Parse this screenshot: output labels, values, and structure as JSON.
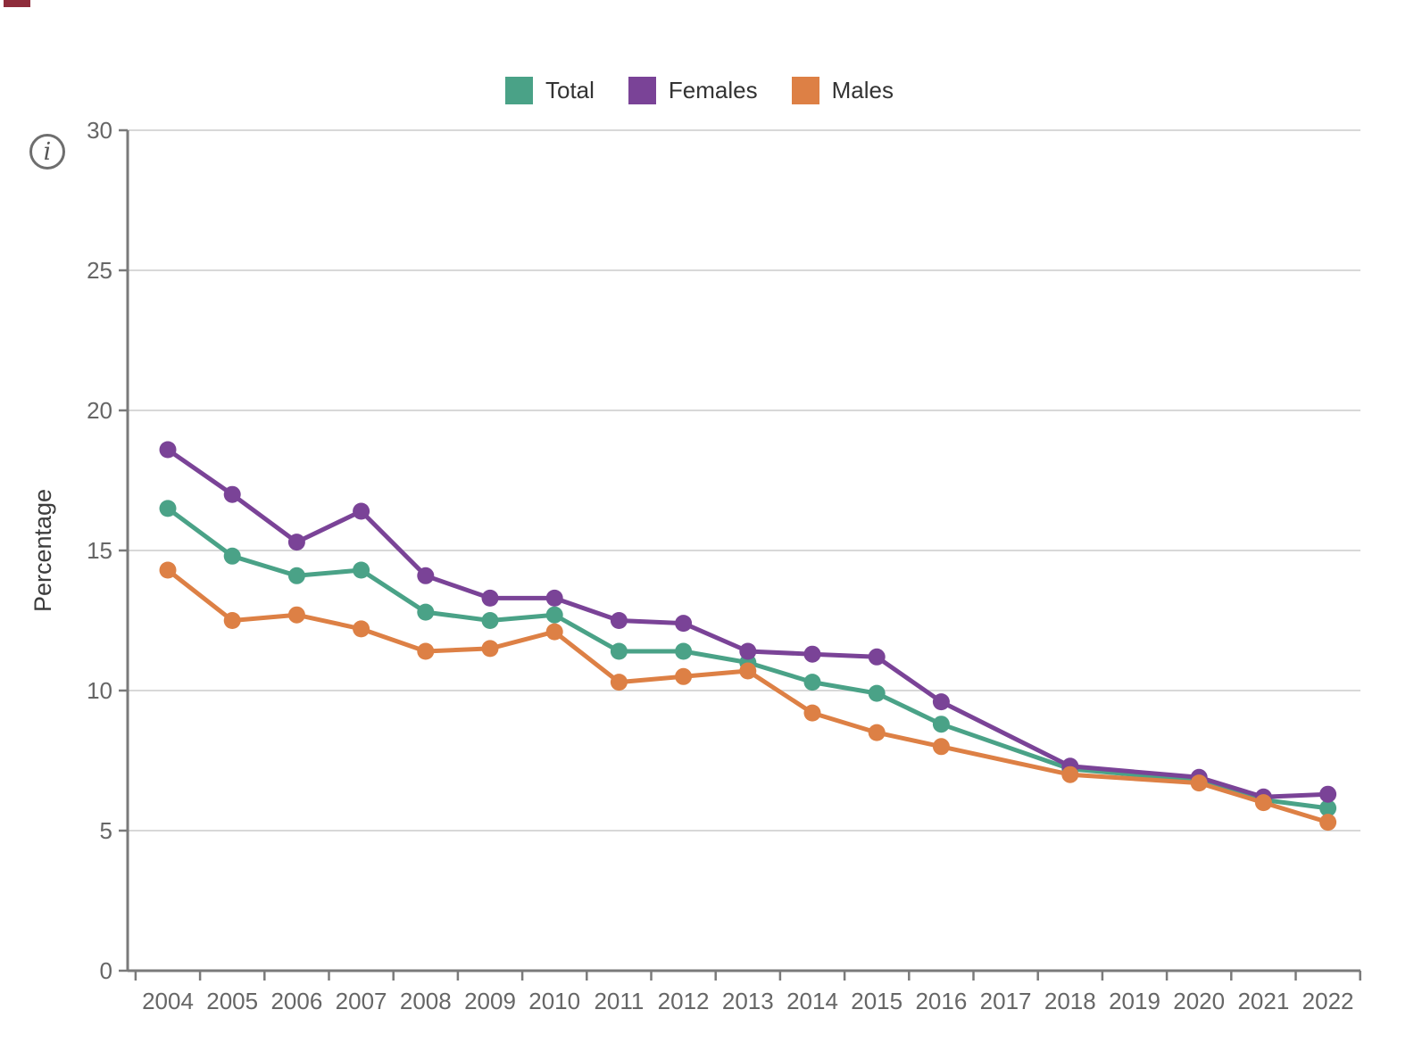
{
  "page": {
    "top_accent_color": "#8e2c3b",
    "background": "#ffffff"
  },
  "info_icon": {
    "glyph": "i"
  },
  "axis_style": {
    "grid_color": "#d8d8d8",
    "axis_color": "#7a7a7a",
    "tick_label_color": "#666666",
    "axis_title_color": "#3c3c3c"
  },
  "chart_data": {
    "type": "line",
    "title": "",
    "xlabel": "",
    "ylabel": "Percentage",
    "ylim": [
      0,
      30
    ],
    "yticks": [
      0,
      5,
      10,
      15,
      20,
      25,
      30
    ],
    "grid": true,
    "legend_position": "top",
    "markers": true,
    "missing_years_note": "2017 and 2019 have no data points; lines connect across them",
    "categories": [
      "2004",
      "2005",
      "2006",
      "2007",
      "2008",
      "2009",
      "2010",
      "2011",
      "2012",
      "2013",
      "2014",
      "2015",
      "2016",
      "2017",
      "2018",
      "2019",
      "2020",
      "2021",
      "2022"
    ],
    "series": [
      {
        "name": "Total",
        "color": "#4aa287",
        "values": [
          16.5,
          14.8,
          14.1,
          14.3,
          12.8,
          12.5,
          12.7,
          11.4,
          11.4,
          11.0,
          10.3,
          9.9,
          8.8,
          null,
          7.2,
          null,
          6.8,
          6.1,
          5.8
        ]
      },
      {
        "name": "Females",
        "color": "#7a4397",
        "values": [
          18.6,
          17.0,
          15.3,
          16.4,
          14.1,
          13.3,
          13.3,
          12.5,
          12.4,
          11.4,
          11.3,
          11.2,
          9.6,
          null,
          7.3,
          null,
          6.9,
          6.2,
          6.3
        ]
      },
      {
        "name": "Males",
        "color": "#dd8045",
        "values": [
          14.3,
          12.5,
          12.7,
          12.2,
          11.4,
          11.5,
          12.1,
          10.3,
          10.5,
          10.7,
          9.2,
          8.5,
          8.0,
          null,
          7.0,
          null,
          6.7,
          6.0,
          5.3
        ]
      }
    ]
  }
}
